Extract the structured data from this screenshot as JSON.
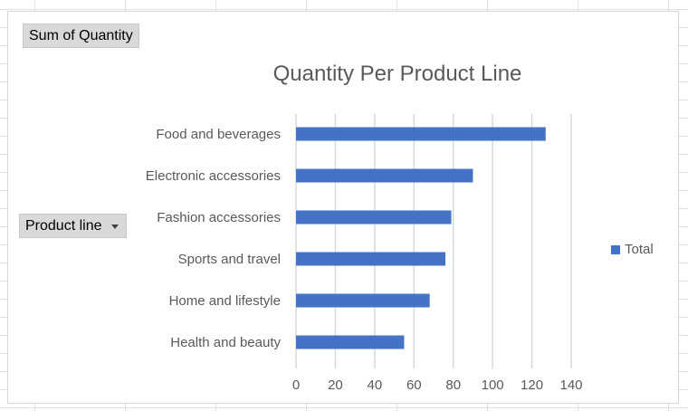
{
  "pivot_fields": {
    "value_field": "Sum of Quantity",
    "axis_field": "Product line"
  },
  "chart_data": {
    "type": "bar",
    "orientation": "horizontal",
    "title": "Quantity Per Product Line",
    "categories": [
      "Food and beverages",
      "Electronic accessories",
      "Fashion accessories",
      "Sports and travel",
      "Home and lifestyle",
      "Health and beauty"
    ],
    "series": [
      {
        "name": "Total",
        "values": [
          127,
          90,
          79,
          76,
          68,
          55
        ],
        "color": "#4472c4"
      }
    ],
    "xlim": [
      0,
      140
    ],
    "xticks": [
      "0",
      "20",
      "40",
      "60",
      "80",
      "100",
      "120",
      "140"
    ],
    "grid": true,
    "legend_position": "right"
  }
}
